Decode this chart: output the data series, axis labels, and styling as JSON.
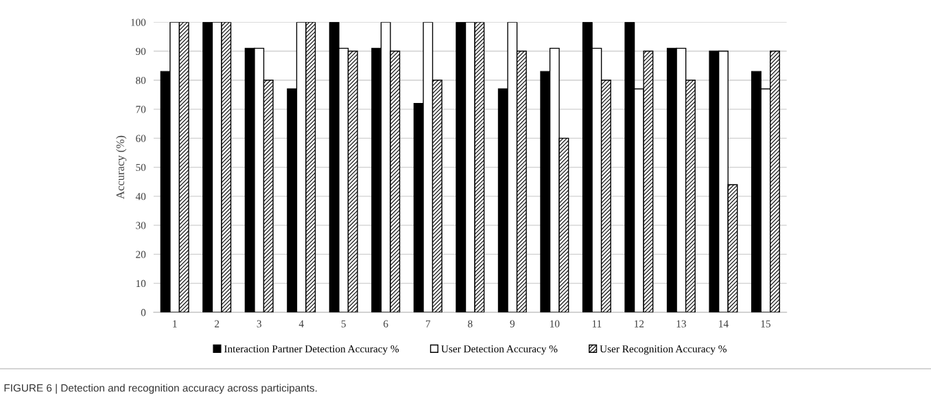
{
  "chart_data": {
    "type": "bar",
    "ylabel": "Accuracy (%)",
    "categories": [
      "1",
      "2",
      "3",
      "4",
      "5",
      "6",
      "7",
      "8",
      "9",
      "10",
      "11",
      "12",
      "13",
      "14",
      "15"
    ],
    "series": [
      {
        "name": "Interaction Partner Detection Accuracy %",
        "color": "#000000",
        "values": [
          83,
          100,
          91,
          77,
          100,
          91,
          72,
          100,
          77,
          83,
          100,
          100,
          91,
          90,
          83
        ]
      },
      {
        "name": "User Detection Accuracy %",
        "color": "#ffffff",
        "values": [
          100,
          100,
          91,
          100,
          91,
          100,
          100,
          100,
          100,
          91,
          91,
          77,
          91,
          90,
          77
        ]
      },
      {
        "name": "User Recognition Accuracy %",
        "color": "#000000",
        "values": [
          100,
          100,
          80,
          100,
          90,
          90,
          80,
          100,
          90,
          60,
          80,
          90,
          80,
          44,
          90
        ]
      }
    ],
    "ylim": [
      0,
      100
    ],
    "yticks": [
      0,
      10,
      20,
      30,
      40,
      50,
      60,
      70,
      80,
      90,
      100
    ],
    "grid": "y",
    "legend": "bottom",
    "annotations": [
      "FIGURE 6 | Detection and recognition accuracy across participants."
    ]
  }
}
